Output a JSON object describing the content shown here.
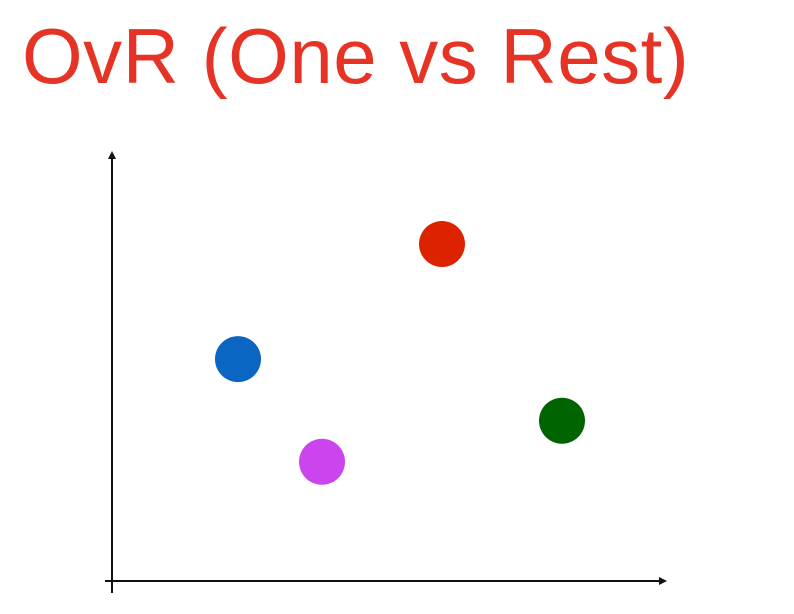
{
  "title": "OvR (One vs Rest)",
  "colors": {
    "title": "#e53326",
    "axis": "#111111"
  },
  "chart_data": {
    "type": "scatter",
    "title": "OvR (One vs Rest)",
    "xlabel": "",
    "ylabel": "",
    "xlim": [
      0,
      100
    ],
    "ylim": [
      0,
      100
    ],
    "grid": false,
    "points": [
      {
        "x": 55,
        "y": 82,
        "color": "#dd2200"
      },
      {
        "x": 21,
        "y": 54,
        "color": "#0a66c2"
      },
      {
        "x": 75,
        "y": 39,
        "color": "#006400"
      },
      {
        "x": 35,
        "y": 29,
        "color": "#cc44ee"
      }
    ]
  }
}
